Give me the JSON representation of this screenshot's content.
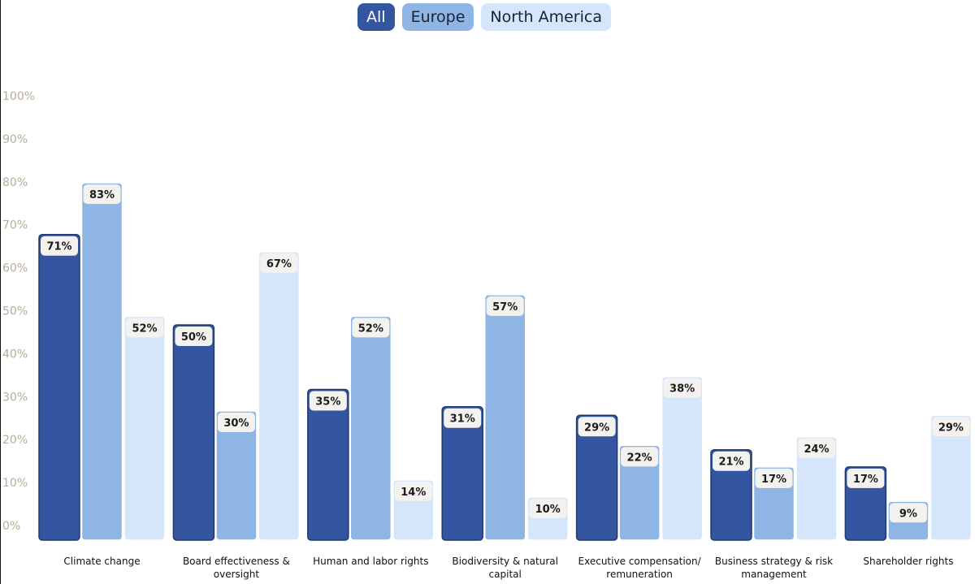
{
  "legend": {
    "items": [
      {
        "label": "All",
        "bg": "#34559f",
        "fg": "#ffffff"
      },
      {
        "label": "Europe",
        "bg": "#8eb5e3",
        "fg": "#1a2236"
      },
      {
        "label": "North America",
        "bg": "#d5e6fa",
        "fg": "#1a2236"
      }
    ]
  },
  "chart_data": {
    "type": "bar",
    "title": "",
    "xlabel": "",
    "ylabel": "",
    "ylim": [
      0,
      100
    ],
    "y_ticks": [
      0,
      10,
      20,
      30,
      40,
      50,
      60,
      70,
      80,
      90,
      100
    ],
    "y_tick_suffix": "%",
    "value_suffix": "%",
    "grid": false,
    "legend_position": "top-center",
    "categories": [
      [
        "Climate change"
      ],
      [
        "Board effectiveness &",
        "oversight"
      ],
      [
        "Human and labor rights"
      ],
      [
        "Biodiversity & natural",
        "capital"
      ],
      [
        "Executive compensation/",
        "remuneration"
      ],
      [
        "Business strategy & risk",
        "management"
      ],
      [
        "Shareholder rights"
      ]
    ],
    "series": [
      {
        "name": "All",
        "color": "#34559f",
        "values": [
          71,
          50,
          35,
          31,
          29,
          21,
          17
        ]
      },
      {
        "name": "Europe",
        "color": "#8eb5e3",
        "values": [
          83,
          30,
          52,
          57,
          22,
          17,
          9
        ]
      },
      {
        "name": "North America",
        "color": "#d5e6fa",
        "values": [
          52,
          67,
          14,
          10,
          38,
          24,
          29
        ]
      }
    ]
  }
}
